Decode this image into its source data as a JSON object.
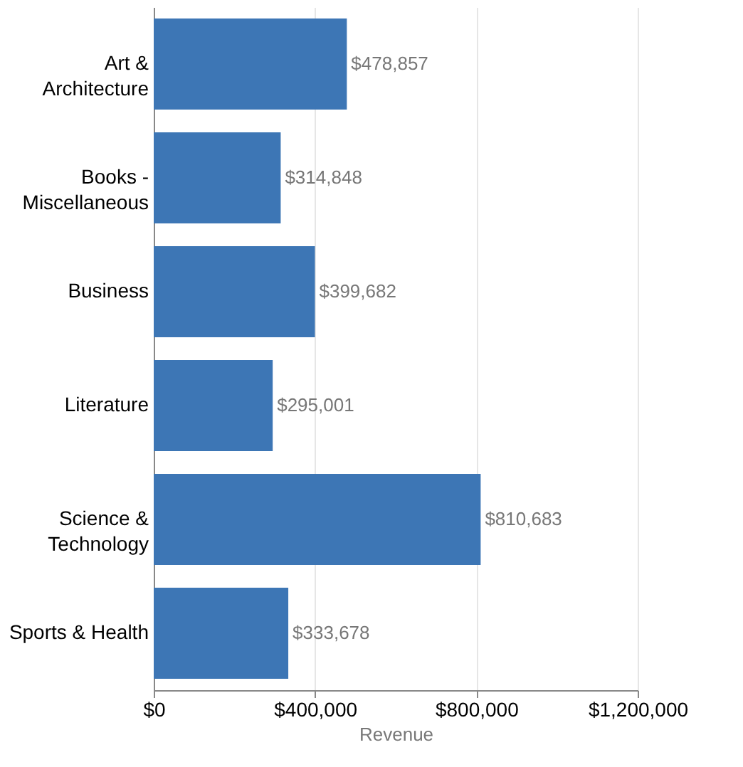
{
  "chart_data": {
    "type": "bar",
    "orientation": "horizontal",
    "xlabel": "Revenue",
    "categories": [
      "Art & Architecture",
      "Books - Miscellaneous",
      "Business",
      "Literature",
      "Science & Technology",
      "Sports & Health"
    ],
    "values": [
      478857,
      314848,
      399682,
      295001,
      810683,
      333678
    ],
    "value_labels": [
      "$478,857",
      "$314,848",
      "$399,682",
      "$295,001",
      "$810,683",
      "$333,678"
    ],
    "color": "#3d76b5",
    "xlim": [
      0,
      1200000
    ],
    "xticks": [
      {
        "value": 0,
        "label": "$0"
      },
      {
        "value": 400000,
        "label": "$400,000"
      },
      {
        "value": 800000,
        "label": "$800,000"
      },
      {
        "value": 1200000,
        "label": "$1,200,000"
      }
    ],
    "grid": "x"
  }
}
